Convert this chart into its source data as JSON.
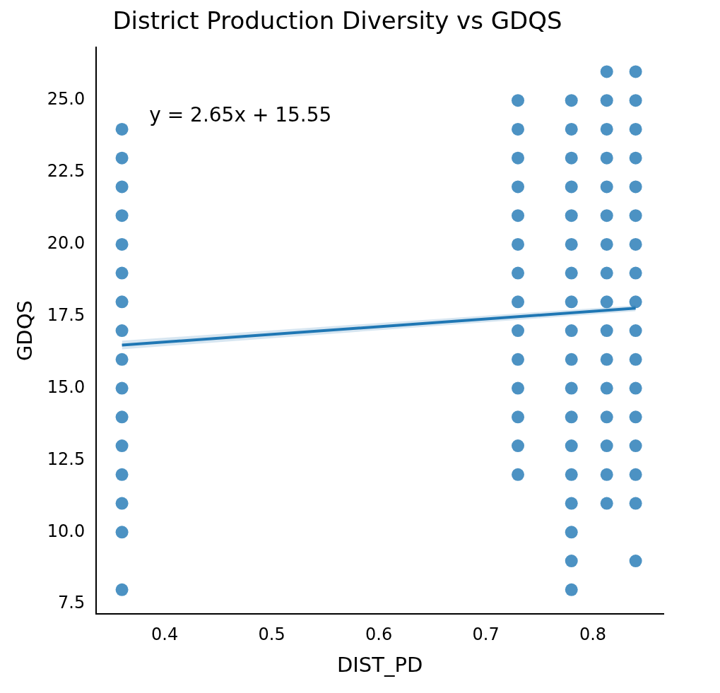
{
  "chart_data": {
    "type": "scatter",
    "title": "District Production Diversity vs GDQS",
    "xlabel": "DIST_PD",
    "ylabel": "GDQS",
    "annotations": [
      "y = 2.65x + 15.55"
    ],
    "xlim": [
      0.336,
      0.866
    ],
    "xticks": [
      0.4,
      0.5,
      0.6,
      0.7,
      0.8
    ],
    "ylim": [
      7.15,
      26.85
    ],
    "yticks": [
      {
        "value": 7.5,
        "label": "7.5"
      },
      {
        "value": 10,
        "label": "10.0"
      },
      {
        "value": 12.5,
        "label": "12.5"
      },
      {
        "value": 15,
        "label": "15.0"
      },
      {
        "value": 17.5,
        "label": "17.5"
      },
      {
        "value": 20,
        "label": "20.0"
      },
      {
        "value": 22.5,
        "label": "22.5"
      },
      {
        "value": 25,
        "label": "25.0"
      }
    ],
    "grid": false,
    "legend": false,
    "marker": "circle",
    "series": [
      {
        "color": "#1f77b4",
        "x": [
          0.36,
          0.36,
          0.36,
          0.36,
          0.36,
          0.36,
          0.36,
          0.36,
          0.36,
          0.36,
          0.36,
          0.36,
          0.36,
          0.36,
          0.36,
          0.36
        ],
        "values": [
          8,
          10,
          11,
          12,
          13,
          14,
          15,
          16,
          17,
          18,
          19,
          20,
          21,
          22,
          23,
          24
        ]
      },
      {
        "color": "#1f77b4",
        "x": [
          0.73,
          0.73,
          0.73,
          0.73,
          0.73,
          0.73,
          0.73,
          0.73,
          0.73,
          0.73,
          0.73,
          0.73,
          0.73,
          0.73
        ],
        "values": [
          12,
          13,
          14,
          15,
          16,
          17,
          18,
          19,
          20,
          21,
          22,
          23,
          24,
          25
        ]
      },
      {
        "color": "#1f77b4",
        "x": [
          0.78,
          0.78,
          0.78,
          0.78,
          0.78,
          0.78,
          0.78,
          0.78,
          0.78,
          0.78,
          0.78,
          0.78,
          0.78,
          0.78,
          0.78,
          0.78,
          0.78,
          0.78
        ],
        "values": [
          8,
          9,
          10,
          11,
          12,
          13,
          14,
          15,
          16,
          17,
          18,
          19,
          20,
          21,
          22,
          23,
          24,
          25
        ]
      },
      {
        "color": "#1f77b4",
        "x": [
          0.813,
          0.813,
          0.813,
          0.813,
          0.813,
          0.813,
          0.813,
          0.813,
          0.813,
          0.813,
          0.813,
          0.813,
          0.813,
          0.813,
          0.813,
          0.813
        ],
        "values": [
          11,
          12,
          13,
          14,
          15,
          16,
          17,
          18,
          19,
          20,
          21,
          22,
          23,
          24,
          25,
          26
        ]
      },
      {
        "color": "#1f77b4",
        "x": [
          0.84,
          0.84,
          0.84,
          0.84,
          0.84,
          0.84,
          0.84,
          0.84,
          0.84,
          0.84,
          0.84,
          0.84,
          0.84,
          0.84,
          0.84,
          0.84,
          0.84
        ],
        "values": [
          9,
          11,
          12,
          13,
          14,
          15,
          16,
          17,
          18,
          19,
          20,
          21,
          22,
          23,
          24,
          25,
          26
        ]
      },
      {
        "type": "line",
        "color": "#1f77b4",
        "x": [
          0.36,
          0.84
        ],
        "values": [
          16.5,
          17.78
        ],
        "lower": [
          16.35,
          17.68
        ],
        "upper": [
          16.65,
          17.88
        ],
        "line_style": "solid",
        "marker": "none"
      }
    ]
  }
}
